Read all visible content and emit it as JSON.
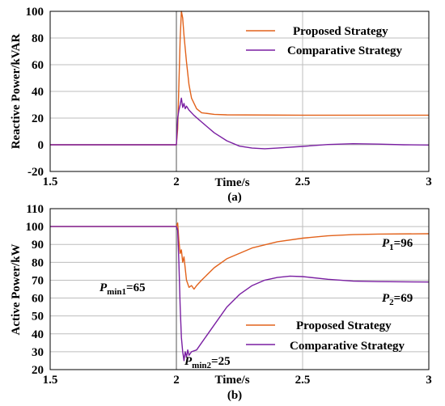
{
  "colors": {
    "proposed": "#E2621B",
    "comparative": "#7A1FA2"
  },
  "chart_data": [
    {
      "type": "line",
      "sub_label": "(a)",
      "xlabel": "Time/s",
      "ylabel": "Reactive Power/kVAR",
      "xlim": [
        1.5,
        3
      ],
      "ylim": [
        -20,
        100
      ],
      "xticks": [
        "1.5",
        "2",
        "2.5",
        "3"
      ],
      "yticks": [
        "-20",
        "0",
        "20",
        "40",
        "60",
        "80",
        "100"
      ],
      "grid": true,
      "legend_position": "top-right",
      "series": [
        {
          "name": "Proposed Strategy",
          "color": "#E2621B",
          "points": [
            [
              1.5,
              0
            ],
            [
              1.99,
              0
            ],
            [
              2.0,
              0
            ],
            [
              2.005,
              12
            ],
            [
              2.01,
              45
            ],
            [
              2.015,
              80
            ],
            [
              2.02,
              100
            ],
            [
              2.025,
              95
            ],
            [
              2.03,
              82
            ],
            [
              2.04,
              62
            ],
            [
              2.05,
              45
            ],
            [
              2.06,
              35
            ],
            [
              2.08,
              27
            ],
            [
              2.1,
              24
            ],
            [
              2.15,
              22.8
            ],
            [
              2.2,
              22.4
            ],
            [
              2.5,
              22.2
            ],
            [
              3.0,
              22.2
            ]
          ]
        },
        {
          "name": "Comparative Strategy",
          "color": "#7A1FA2",
          "points": [
            [
              1.5,
              0
            ],
            [
              2.0,
              0
            ],
            [
              2.005,
              20
            ],
            [
              2.01,
              26
            ],
            [
              2.015,
              30
            ],
            [
              2.02,
              35
            ],
            [
              2.025,
              28
            ],
            [
              2.03,
              31
            ],
            [
              2.035,
              27
            ],
            [
              2.04,
              29
            ],
            [
              2.05,
              26
            ],
            [
              2.07,
              22
            ],
            [
              2.1,
              17
            ],
            [
              2.15,
              9
            ],
            [
              2.2,
              3
            ],
            [
              2.25,
              -1
            ],
            [
              2.3,
              -2.5
            ],
            [
              2.35,
              -3
            ],
            [
              2.4,
              -2.5
            ],
            [
              2.5,
              -1.2
            ],
            [
              2.6,
              0.2
            ],
            [
              2.7,
              0.8
            ],
            [
              2.8,
              0.5
            ],
            [
              2.9,
              0
            ],
            [
              3.0,
              -0.2
            ]
          ]
        }
      ]
    },
    {
      "type": "line",
      "sub_label": "(b)",
      "xlabel": "Time/s",
      "ylabel": "Active Power/kW",
      "xlim": [
        1.5,
        3
      ],
      "ylim": [
        20,
        110
      ],
      "xticks": [
        "1.5",
        "2",
        "2.5",
        "3"
      ],
      "yticks": [
        "20",
        "30",
        "40",
        "50",
        "60",
        "70",
        "80",
        "90",
        "100",
        "110"
      ],
      "grid": true,
      "legend_position": "bottom-right",
      "series": [
        {
          "name": "Proposed Strategy",
          "color": "#E2621B",
          "points": [
            [
              1.5,
              100
            ],
            [
              2.0,
              100
            ],
            [
              2.005,
              102
            ],
            [
              2.01,
              92
            ],
            [
              2.015,
              85
            ],
            [
              2.02,
              87
            ],
            [
              2.025,
              80
            ],
            [
              2.03,
              83
            ],
            [
              2.04,
              70
            ],
            [
              2.05,
              66
            ],
            [
              2.06,
              67
            ],
            [
              2.07,
              65
            ],
            [
              2.08,
              67
            ],
            [
              2.1,
              70
            ],
            [
              2.15,
              77
            ],
            [
              2.2,
              82
            ],
            [
              2.3,
              88
            ],
            [
              2.4,
              91.5
            ],
            [
              2.5,
              93.5
            ],
            [
              2.6,
              94.8
            ],
            [
              2.7,
              95.5
            ],
            [
              2.8,
              95.8
            ],
            [
              3.0,
              96
            ]
          ]
        },
        {
          "name": "Comparative Strategy",
          "color": "#7A1FA2",
          "points": [
            [
              1.5,
              100
            ],
            [
              2.0,
              100
            ],
            [
              2.005,
              98
            ],
            [
              2.01,
              80
            ],
            [
              2.015,
              55
            ],
            [
              2.02,
              38
            ],
            [
              2.025,
              30
            ],
            [
              2.03,
              25
            ],
            [
              2.035,
              30
            ],
            [
              2.04,
              27
            ],
            [
              2.045,
              31
            ],
            [
              2.05,
              28
            ],
            [
              2.06,
              30
            ],
            [
              2.08,
              31
            ],
            [
              2.1,
              35
            ],
            [
              2.15,
              45
            ],
            [
              2.2,
              55
            ],
            [
              2.25,
              62
            ],
            [
              2.3,
              67
            ],
            [
              2.35,
              70
            ],
            [
              2.4,
              71.5
            ],
            [
              2.45,
              72.3
            ],
            [
              2.5,
              72
            ],
            [
              2.6,
              70.5
            ],
            [
              2.7,
              69.5
            ],
            [
              2.8,
              69.2
            ],
            [
              3.0,
              69
            ]
          ]
        }
      ],
      "annotations": [
        {
          "id": "p1",
          "main": "P",
          "sub": "1",
          "rest": "=96"
        },
        {
          "id": "p2",
          "main": "P",
          "sub": "2",
          "rest": "=69"
        },
        {
          "id": "pmin1",
          "main": "P",
          "sub": "min1",
          "rest": "=65"
        },
        {
          "id": "pmin2",
          "main": "P",
          "sub": "min2",
          "rest": "=25"
        }
      ]
    }
  ]
}
